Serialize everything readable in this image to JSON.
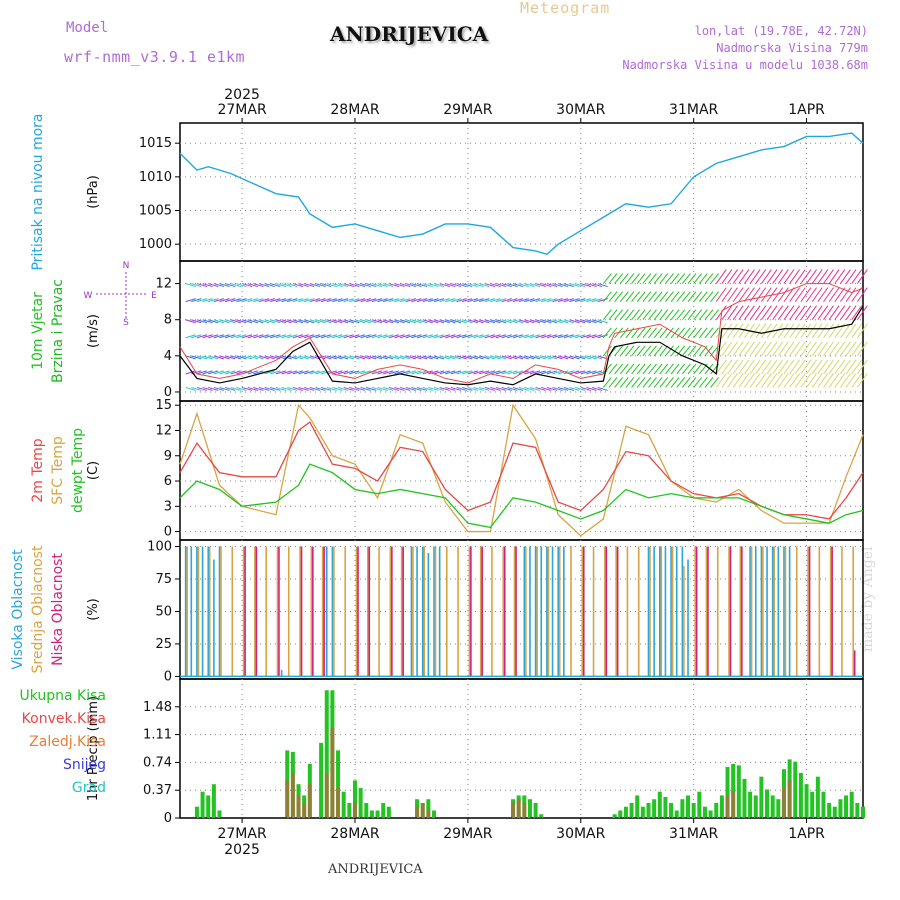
{
  "header": {
    "model_label": "Model",
    "model_name": "wrf-nmm_v3.9.1 e1km",
    "app_title": "Meteogram",
    "station": "ANDRIJEVICA",
    "coords": "lon,lat (19.78E, 42.72N)",
    "elevation": "Nadmorska Visina 779m",
    "model_elevation": "Nadmorska Visina u modelu 1038.68m",
    "footer_station": "ANDRIJEVICA",
    "credit": "made by Angel"
  },
  "time_axis": {
    "year": "2025",
    "days": [
      "27MAR",
      "28MAR",
      "29MAR",
      "30MAR",
      "31MAR",
      "1APR"
    ],
    "day_fraction_at_left": 0.45,
    "day_fraction_at_right": 6.5
  },
  "colors": {
    "pressure": "#1fa7e0",
    "temp2m": "#e84848",
    "sfc_temp": "#d8a443",
    "dewpt": "#22c322",
    "wind_speed_label": "#22c322",
    "wind_dir_label": "#22b822",
    "cloud_high": "#2aa6d8",
    "cloud_mid": "#d8a443",
    "cloud_low": "#d0207f",
    "total_precip": "#22c322",
    "conv_precip": "#e84848",
    "frz_precip": "#ee7c33",
    "snow": "#3a3ae0",
    "hail": "#22c3c3",
    "compass": "#9933cc"
  },
  "panels": {
    "pressure": {
      "labels": [
        "Pritisak na nivou mora"
      ],
      "unit": "(hPa)",
      "ticks": [
        "1000",
        "1005",
        "1010",
        "1015"
      ]
    },
    "wind": {
      "labels": [
        "10m Vjetar",
        "Brzina i Pravac"
      ],
      "unit": "(m/s)",
      "ticks": [
        "0",
        "4",
        "8",
        "12"
      ],
      "compass": {
        "n": "N",
        "s": "S",
        "e": "E",
        "w": "W"
      }
    },
    "temp": {
      "labels": [
        "2m Temp",
        "SFC Temp",
        "dewpt Temp"
      ],
      "unit": "(C)",
      "ticks": [
        "0",
        "3",
        "6",
        "9",
        "12",
        "15"
      ]
    },
    "cloud": {
      "labels": [
        "Visoka Oblacnost",
        "Srednja Oblacnost",
        "Niska Oblacnost"
      ],
      "unit": "(%)",
      "ticks": [
        "0",
        "25",
        "50",
        "75",
        "100"
      ]
    },
    "precip": {
      "labels": [
        "Ukupna Kisa",
        "Konvek.Kisa",
        "Zaledj.Kisa",
        "Snijeg",
        "Grad"
      ],
      "unit": "1hr Precip (mm)",
      "ticks": [
        "0",
        "0.37",
        "0.74",
        "1.11",
        "1.48"
      ]
    }
  },
  "chart_data": [
    {
      "type": "line",
      "title": "Pritisak na nivou mora",
      "ylabel": "(hPa)",
      "ylim": [
        997.5,
        1018
      ],
      "x_unit": "day of March 2025",
      "series": [
        {
          "name": "Pritisak na nivou mora",
          "x": [
            26.45,
            26.6,
            26.7,
            26.9,
            27.1,
            27.3,
            27.5,
            27.6,
            27.8,
            28.0,
            28.2,
            28.4,
            28.6,
            28.8,
            29.0,
            29.2,
            29.4,
            29.6,
            29.7,
            29.8,
            30.0,
            30.2,
            30.4,
            30.6,
            30.8,
            31.0,
            31.2,
            31.4,
            31.6,
            31.8,
            32.0,
            32.2,
            32.4,
            32.5
          ],
          "values": [
            1013.5,
            1011,
            1011.5,
            1010.5,
            1009,
            1007.5,
            1007,
            1004.5,
            1002.5,
            1003,
            1002,
            1001,
            1001.5,
            1003,
            1003,
            1002.5,
            999.5,
            999,
            998.5,
            1000,
            1002,
            1004,
            1006,
            1005.5,
            1006,
            1010,
            1012,
            1013,
            1014,
            1014.5,
            1016,
            1016,
            1016.5,
            1015
          ]
        }
      ]
    },
    {
      "type": "line",
      "title": "10m Vjetar Brzina i Pravac",
      "ylabel": "(m/s)",
      "ylim": [
        -1,
        14.5
      ],
      "x_unit": "day of March 2025",
      "series": [
        {
          "name": "Brzina",
          "x": [
            26.45,
            26.6,
            26.8,
            27.0,
            27.3,
            27.45,
            27.6,
            27.8,
            28.0,
            28.2,
            28.4,
            28.6,
            28.8,
            29.0,
            29.2,
            29.4,
            29.6,
            29.8,
            30.0,
            30.2,
            30.25,
            30.3,
            30.5,
            30.7,
            30.9,
            31.1,
            31.2,
            31.25,
            31.4,
            31.6,
            31.8,
            32.0,
            32.2,
            32.4,
            32.5
          ],
          "values": [
            4,
            1.5,
            1,
            1.5,
            2.5,
            4.5,
            5.5,
            1.2,
            1,
            1.5,
            2,
            1.5,
            1,
            0.8,
            1.2,
            0.8,
            2,
            1.5,
            1,
            1.2,
            4,
            5,
            5.5,
            5.5,
            4,
            3,
            2,
            7,
            7,
            6.5,
            7,
            7,
            7,
            7.5,
            9.5
          ]
        },
        {
          "name": "Udari",
          "x": [
            26.45,
            26.6,
            26.8,
            27.0,
            27.3,
            27.45,
            27.6,
            27.8,
            28.0,
            28.2,
            28.4,
            28.6,
            28.8,
            29.0,
            29.2,
            29.4,
            29.6,
            29.8,
            30.0,
            30.2,
            30.25,
            30.3,
            30.5,
            30.7,
            30.9,
            31.1,
            31.2,
            31.25,
            31.4,
            31.6,
            31.8,
            32.0,
            32.2,
            32.4,
            32.5
          ],
          "values": [
            5,
            2,
            1.5,
            2,
            3.5,
            5,
            6,
            2,
            1.5,
            2.5,
            3,
            2.5,
            1.5,
            1,
            2,
            1.5,
            3,
            2.5,
            1.5,
            2,
            5,
            6.5,
            7,
            7.5,
            6,
            5,
            3.5,
            9,
            10,
            10.5,
            11,
            12,
            12,
            11,
            11.5
          ]
        }
      ]
    },
    {
      "type": "line",
      "title": "2m Temp / SFC Temp / dewpt Temp",
      "ylabel": "(C)",
      "ylim": [
        -1,
        15.5
      ],
      "x_unit": "day of March 2025",
      "series": [
        {
          "name": "2m Temp",
          "x": [
            26.45,
            26.6,
            26.8,
            27.0,
            27.3,
            27.5,
            27.6,
            27.8,
            28.0,
            28.2,
            28.4,
            28.6,
            28.8,
            29.0,
            29.2,
            29.4,
            29.6,
            29.8,
            30.0,
            30.2,
            30.4,
            30.6,
            30.8,
            31.0,
            31.2,
            31.4,
            31.6,
            31.8,
            32.0,
            32.2,
            32.35,
            32.5
          ],
          "values": [
            7,
            10.5,
            7,
            6.5,
            6.5,
            12,
            13,
            8,
            7.5,
            6,
            10,
            9.5,
            5,
            2.5,
            3.5,
            10.5,
            10,
            3.5,
            2.5,
            5,
            9.5,
            9,
            6,
            4.5,
            4,
            4.5,
            3,
            2,
            2,
            1.5,
            4,
            7
          ]
        },
        {
          "name": "SFC Temp",
          "x": [
            26.45,
            26.6,
            26.8,
            27.0,
            27.3,
            27.5,
            27.6,
            27.8,
            28.0,
            28.2,
            28.4,
            28.6,
            28.8,
            29.0,
            29.2,
            29.4,
            29.6,
            29.8,
            30.0,
            30.2,
            30.4,
            30.6,
            30.8,
            31.0,
            31.2,
            31.4,
            31.6,
            31.8,
            32.0,
            32.2,
            32.35,
            32.5
          ],
          "values": [
            8,
            14,
            5.5,
            3,
            2,
            15,
            13.5,
            9,
            8,
            4,
            11.5,
            10.5,
            3.5,
            0,
            0,
            15,
            11,
            2,
            -0.5,
            1.5,
            12.5,
            11.5,
            6,
            4,
            3.5,
            5,
            2.5,
            1,
            1,
            1,
            6.5,
            11.5
          ]
        },
        {
          "name": "dewpt Temp",
          "x": [
            26.45,
            26.6,
            26.8,
            27.0,
            27.3,
            27.5,
            27.6,
            27.8,
            28.0,
            28.2,
            28.4,
            28.6,
            28.8,
            29.0,
            29.2,
            29.4,
            29.6,
            29.8,
            30.0,
            30.2,
            30.4,
            30.6,
            30.8,
            31.0,
            31.2,
            31.4,
            31.6,
            31.8,
            32.0,
            32.2,
            32.35,
            32.5
          ],
          "values": [
            4,
            6,
            5,
            3,
            3.5,
            5.5,
            8,
            7,
            5,
            4.5,
            5,
            4.5,
            4,
            1,
            0.5,
            4,
            3.5,
            2.5,
            1.5,
            2.5,
            5,
            4,
            4.5,
            4,
            4,
            4,
            3,
            2,
            1.5,
            1,
            2,
            2.5
          ]
        }
      ]
    },
    {
      "type": "bar",
      "title": "Oblacnost",
      "ylabel": "(%)",
      "ylim": [
        0,
        105
      ],
      "x_unit": "day of March 2025",
      "series": [
        {
          "name": "Visoka Oblacnost",
          "x": [
            26.5,
            26.55,
            26.6,
            26.65,
            26.7,
            26.75,
            26.8,
            27.35,
            27.75,
            27.8,
            28.5,
            28.55,
            28.6,
            28.65,
            28.7,
            28.75,
            29.5,
            29.55,
            29.6,
            29.65,
            29.7,
            29.75,
            29.8,
            29.85,
            30.6,
            30.65,
            30.7,
            30.75,
            30.8,
            30.85,
            30.9,
            30.95,
            31.5,
            31.55,
            31.6,
            31.65,
            31.7,
            31.75,
            31.8,
            31.85
          ],
          "values": [
            100,
            100,
            100,
            100,
            100,
            90,
            100,
            5,
            100,
            100,
            100,
            100,
            100,
            95,
            100,
            100,
            100,
            100,
            100,
            100,
            100,
            100,
            100,
            100,
            100,
            100,
            100,
            100,
            100,
            100,
            100,
            90,
            100,
            100,
            100,
            100,
            100,
            100,
            100,
            100
          ]
        },
        {
          "name": "Srednja Oblacnost",
          "x": [
            26.5,
            26.6,
            26.7,
            26.8,
            26.9,
            27.0,
            27.1,
            27.2,
            27.3,
            27.4,
            27.5,
            27.6,
            27.7,
            27.8,
            27.9,
            28.0,
            28.1,
            28.2,
            28.3,
            28.4,
            28.5,
            28.6,
            28.7,
            28.8,
            28.9,
            29.0,
            29.1,
            29.2,
            29.3,
            29.4,
            29.5,
            29.6,
            29.7,
            29.8,
            29.9,
            30.0,
            30.1,
            30.2,
            30.3,
            30.4,
            30.5,
            30.6,
            30.7,
            30.8,
            30.9,
            31.0,
            31.1,
            31.2,
            31.3,
            31.4,
            31.5,
            31.6,
            31.7,
            31.8,
            31.9,
            32.0,
            32.1,
            32.2,
            32.3,
            32.4
          ],
          "values": [
            100,
            100,
            100,
            100,
            100,
            100,
            100,
            100,
            100,
            100,
            100,
            100,
            100,
            100,
            100,
            100,
            100,
            100,
            100,
            100,
            100,
            100,
            100,
            100,
            100,
            100,
            100,
            100,
            100,
            100,
            100,
            100,
            100,
            100,
            100,
            100,
            100,
            100,
            100,
            100,
            100,
            100,
            100,
            100,
            85,
            100,
            100,
            100,
            100,
            100,
            100,
            100,
            100,
            100,
            100,
            100,
            100,
            100,
            100,
            100
          ]
        },
        {
          "name": "Niska Oblacnost",
          "x": [
            27.0,
            27.1,
            27.3,
            27.5,
            27.6,
            27.7,
            28.0,
            28.1,
            28.3,
            28.4,
            29.0,
            29.1,
            29.3,
            29.4,
            30.0,
            30.2,
            30.3,
            31.0,
            31.1,
            31.3,
            31.4,
            32.0,
            32.2,
            32.4
          ],
          "values": [
            100,
            100,
            100,
            100,
            100,
            100,
            100,
            100,
            100,
            100,
            100,
            100,
            100,
            100,
            100,
            100,
            100,
            100,
            100,
            100,
            100,
            100,
            100,
            20
          ]
        }
      ]
    },
    {
      "type": "bar",
      "title": "1hr Precip",
      "ylabel": "1hr Precip (mm)",
      "ylim": [
        0,
        1.85
      ],
      "x_unit": "day of March 2025",
      "series": [
        {
          "name": "Ukupna Kisa",
          "x": [
            26.6,
            26.65,
            26.7,
            26.75,
            26.8,
            27.4,
            27.45,
            27.5,
            27.55,
            27.6,
            27.7,
            27.75,
            27.8,
            27.85,
            27.9,
            27.95,
            28.0,
            28.05,
            28.1,
            28.15,
            28.2,
            28.25,
            28.3,
            28.55,
            28.6,
            28.65,
            28.7,
            29.4,
            29.45,
            29.5,
            29.55,
            29.6,
            29.65,
            30.3,
            30.35,
            30.4,
            30.45,
            30.5,
            30.55,
            30.6,
            30.65,
            30.7,
            30.75,
            30.8,
            30.85,
            30.9,
            30.95,
            31.0,
            31.05,
            31.1,
            31.15,
            31.2,
            31.25,
            31.3,
            31.35,
            31.4,
            31.45,
            31.5,
            31.55,
            31.6,
            31.65,
            31.7,
            31.75,
            31.8,
            31.85,
            31.9,
            31.95,
            32.0,
            32.05,
            32.1,
            32.15,
            32.2,
            32.25,
            32.3,
            32.35,
            32.4,
            32.45,
            32.5
          ],
          "values": [
            0.15,
            0.35,
            0.3,
            0.45,
            0.1,
            0.9,
            0.88,
            0.45,
            0.3,
            0.72,
            1.0,
            1.7,
            1.7,
            0.9,
            0.35,
            0.2,
            0.5,
            0.4,
            0.2,
            0.1,
            0.1,
            0.2,
            0.15,
            0.25,
            0.2,
            0.25,
            0.1,
            0.25,
            0.3,
            0.3,
            0.25,
            0.2,
            0.05,
            0.05,
            0.1,
            0.15,
            0.2,
            0.3,
            0.15,
            0.2,
            0.25,
            0.35,
            0.28,
            0.2,
            0.1,
            0.25,
            0.3,
            0.2,
            0.35,
            0.15,
            0.1,
            0.2,
            0.3,
            0.68,
            0.72,
            0.7,
            0.52,
            0.35,
            0.3,
            0.55,
            0.38,
            0.3,
            0.25,
            0.65,
            0.78,
            0.75,
            0.6,
            0.45,
            0.35,
            0.55,
            0.35,
            0.2,
            0.15,
            0.25,
            0.3,
            0.35,
            0.2,
            0.15
          ]
        },
        {
          "name": "Konvek.Kisa",
          "x": [
            27.4,
            27.45,
            27.5,
            27.55,
            27.6,
            27.75,
            27.8,
            27.85,
            28.0,
            28.55,
            28.6,
            28.65,
            29.4,
            29.45,
            29.5,
            31.3,
            31.35,
            31.8,
            31.85
          ],
          "values": [
            0.5,
            0.6,
            0.3,
            0.2,
            0.45,
            0.6,
            1.2,
            0.4,
            0.2,
            0.15,
            0.2,
            0.1,
            0.2,
            0.25,
            0.2,
            0.3,
            0.35,
            0.4,
            0.5
          ]
        }
      ]
    }
  ]
}
